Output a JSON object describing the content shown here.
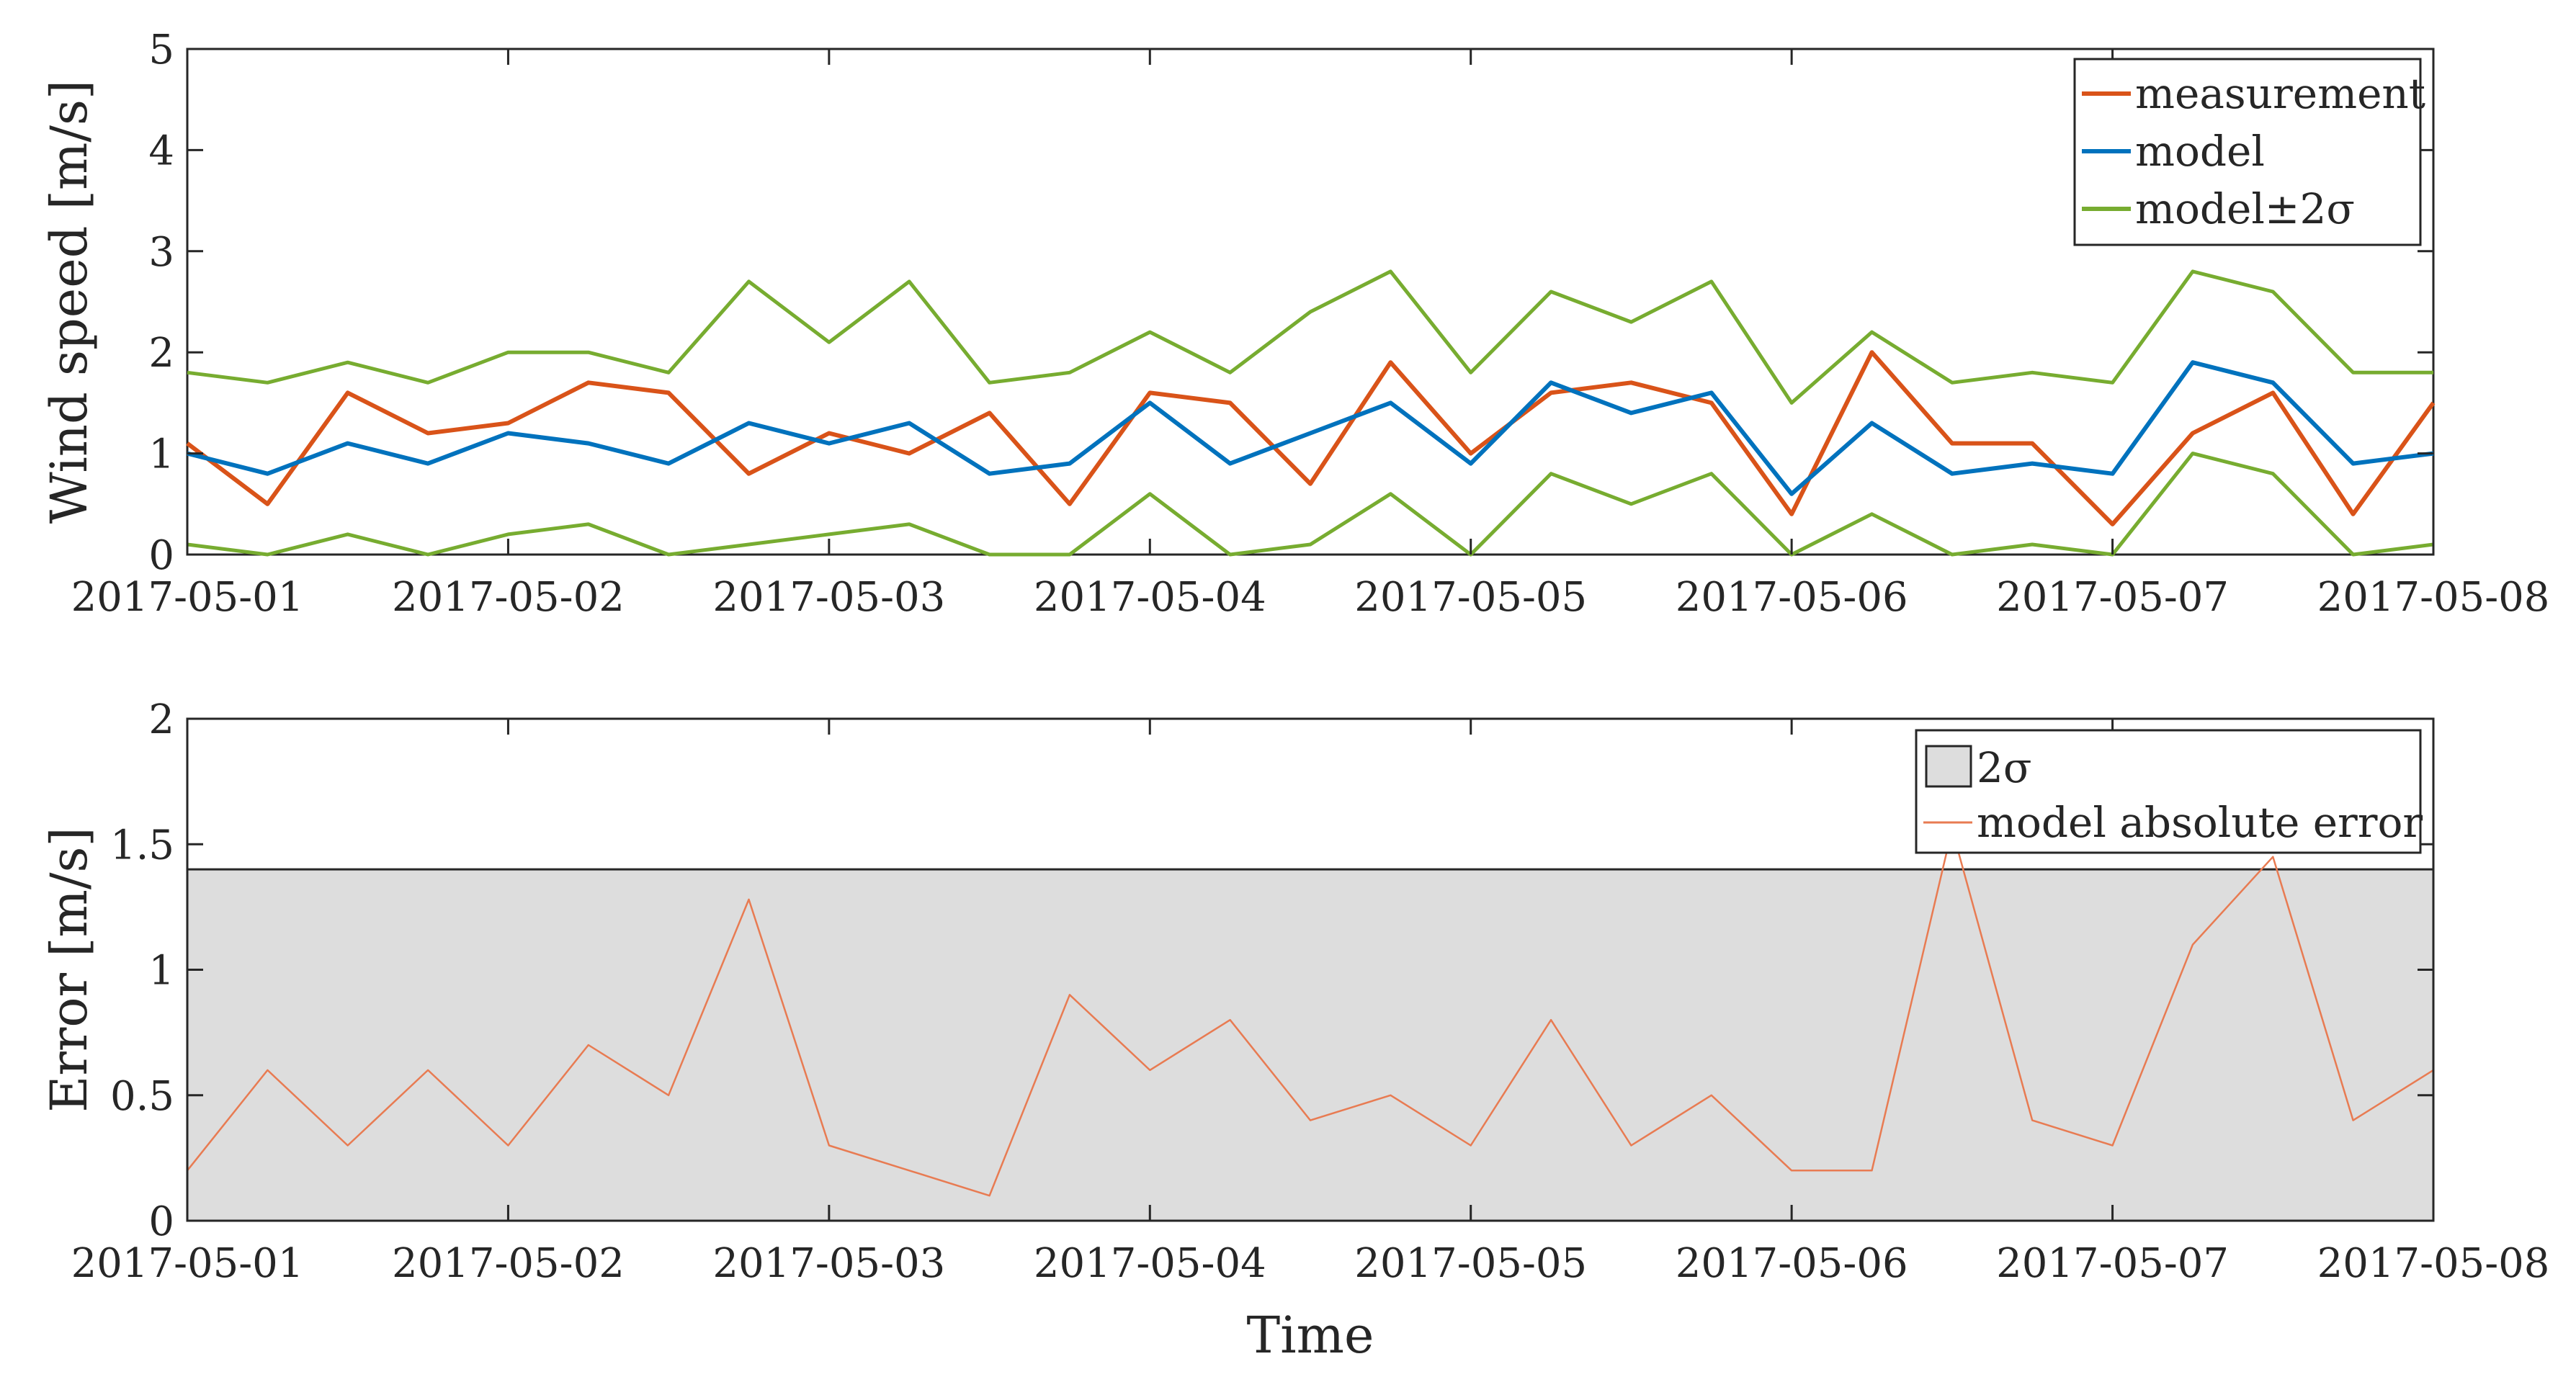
{
  "chart_data": [
    {
      "type": "line",
      "title": "",
      "xlabel": "",
      "ylabel": "Wind speed [m/s]",
      "ylim": [
        0,
        5
      ],
      "yticks": [
        "0",
        "1",
        "2",
        "3",
        "4",
        "5"
      ],
      "xlim": [
        "2017-05-01",
        "2017-05-08"
      ],
      "xticks": [
        "2017-05-01",
        "2017-05-02",
        "2017-05-03",
        "2017-05-04",
        "2017-05-05",
        "2017-05-06",
        "2017-05-07",
        "2017-05-08"
      ],
      "grid": false,
      "legend_position": "top-right",
      "series": [
        {
          "name": "measurement",
          "color": "#D95319",
          "x": [
            "2017-05-01 00:00",
            "2017-05-01 06:00",
            "2017-05-01 12:00",
            "2017-05-01 18:00",
            "2017-05-02 00:00",
            "2017-05-02 06:00",
            "2017-05-02 12:00",
            "2017-05-02 18:00",
            "2017-05-03 00:00",
            "2017-05-03 06:00",
            "2017-05-03 12:00",
            "2017-05-03 18:00",
            "2017-05-04 00:00",
            "2017-05-04 06:00",
            "2017-05-04 12:00",
            "2017-05-04 18:00",
            "2017-05-05 00:00",
            "2017-05-05 06:00",
            "2017-05-05 12:00",
            "2017-05-05 18:00",
            "2017-05-06 00:00",
            "2017-05-06 06:00",
            "2017-05-06 12:00",
            "2017-05-06 18:00",
            "2017-05-07 00:00",
            "2017-05-07 06:00",
            "2017-05-07 12:00",
            "2017-05-07 18:00",
            "2017-05-08 00:00"
          ],
          "values": [
            1.1,
            0.5,
            1.6,
            1.2,
            1.3,
            1.7,
            1.6,
            0.8,
            1.2,
            1.0,
            1.4,
            0.5,
            1.6,
            1.5,
            0.7,
            1.9,
            1.0,
            1.6,
            1.7,
            1.5,
            0.4,
            2.0,
            1.1,
            1.1,
            0.3,
            1.2,
            1.6,
            0.4,
            1.5
          ]
        },
        {
          "name": "model",
          "color": "#0072BD",
          "x": [
            "2017-05-01 00:00",
            "2017-05-01 06:00",
            "2017-05-01 12:00",
            "2017-05-01 18:00",
            "2017-05-02 00:00",
            "2017-05-02 06:00",
            "2017-05-02 12:00",
            "2017-05-02 18:00",
            "2017-05-03 00:00",
            "2017-05-03 06:00",
            "2017-05-03 12:00",
            "2017-05-03 18:00",
            "2017-05-04 00:00",
            "2017-05-04 06:00",
            "2017-05-04 12:00",
            "2017-05-04 18:00",
            "2017-05-05 00:00",
            "2017-05-05 06:00",
            "2017-05-05 12:00",
            "2017-05-05 18:00",
            "2017-05-06 00:00",
            "2017-05-06 06:00",
            "2017-05-06 12:00",
            "2017-05-06 18:00",
            "2017-05-07 00:00",
            "2017-05-07 06:00",
            "2017-05-07 12:00",
            "2017-05-07 18:00",
            "2017-05-08 00:00"
          ],
          "values": [
            1.0,
            0.8,
            1.1,
            0.9,
            1.2,
            1.1,
            0.9,
            1.3,
            1.1,
            1.3,
            0.8,
            0.9,
            1.5,
            0.9,
            1.2,
            1.5,
            0.9,
            1.7,
            1.4,
            1.6,
            0.6,
            1.3,
            0.8,
            0.9,
            0.8,
            1.9,
            1.7,
            0.9,
            1.0
          ]
        },
        {
          "name": "model±2σ",
          "color": "#77AC30",
          "x": [
            "2017-05-01 00:00",
            "2017-05-01 06:00",
            "2017-05-01 12:00",
            "2017-05-01 18:00",
            "2017-05-02 00:00",
            "2017-05-02 06:00",
            "2017-05-02 12:00",
            "2017-05-02 18:00",
            "2017-05-03 00:00",
            "2017-05-03 06:00",
            "2017-05-03 12:00",
            "2017-05-03 18:00",
            "2017-05-04 00:00",
            "2017-05-04 06:00",
            "2017-05-04 12:00",
            "2017-05-04 18:00",
            "2017-05-05 00:00",
            "2017-05-05 06:00",
            "2017-05-05 12:00",
            "2017-05-05 18:00",
            "2017-05-06 00:00",
            "2017-05-06 06:00",
            "2017-05-06 12:00",
            "2017-05-06 18:00",
            "2017-05-07 00:00",
            "2017-05-07 06:00",
            "2017-05-07 12:00",
            "2017-05-07 18:00",
            "2017-05-08 00:00"
          ],
          "values_upper": [
            1.8,
            1.7,
            1.9,
            1.7,
            2.0,
            2.0,
            1.8,
            2.7,
            2.1,
            2.7,
            1.7,
            1.8,
            2.2,
            1.8,
            2.4,
            2.8,
            1.8,
            2.6,
            2.3,
            2.7,
            1.5,
            2.2,
            1.7,
            1.8,
            1.7,
            2.8,
            2.6,
            1.8,
            1.8
          ],
          "values_lower": [
            0.1,
            0.0,
            0.2,
            0.0,
            0.2,
            0.3,
            0.0,
            0.1,
            0.2,
            0.3,
            0.0,
            0.0,
            0.6,
            0.0,
            0.1,
            0.6,
            0.0,
            0.8,
            0.5,
            0.8,
            0.0,
            0.4,
            0.0,
            0.1,
            0.0,
            1.0,
            0.8,
            0.0,
            0.1
          ]
        }
      ]
    },
    {
      "type": "area",
      "title": "",
      "xlabel": "Time",
      "ylabel": "Error [m/s]",
      "ylim": [
        0,
        2
      ],
      "yticks": [
        "0",
        "0.5",
        "1",
        "1.5",
        "2"
      ],
      "xlim": [
        "2017-05-01",
        "2017-05-08"
      ],
      "xticks": [
        "2017-05-01",
        "2017-05-02",
        "2017-05-03",
        "2017-05-04",
        "2017-05-05",
        "2017-05-06",
        "2017-05-07",
        "2017-05-08"
      ],
      "grid": false,
      "legend_position": "top-right",
      "series": [
        {
          "name": "2σ",
          "color": "#DDDDDD",
          "edge_color": "#262626",
          "x": [
            "2017-05-01",
            "2017-05-08"
          ],
          "values": [
            1.4,
            1.4
          ]
        },
        {
          "name": "model absolute error",
          "color": "#E87B52",
          "x": [
            "2017-05-01 00:00",
            "2017-05-01 06:00",
            "2017-05-01 12:00",
            "2017-05-01 18:00",
            "2017-05-02 00:00",
            "2017-05-02 06:00",
            "2017-05-02 12:00",
            "2017-05-02 18:00",
            "2017-05-03 00:00",
            "2017-05-03 06:00",
            "2017-05-03 12:00",
            "2017-05-03 18:00",
            "2017-05-04 00:00",
            "2017-05-04 06:00",
            "2017-05-04 12:00",
            "2017-05-04 18:00",
            "2017-05-05 00:00",
            "2017-05-05 06:00",
            "2017-05-05 12:00",
            "2017-05-05 18:00",
            "2017-05-06 00:00",
            "2017-05-06 06:00",
            "2017-05-06 12:00",
            "2017-05-06 18:00",
            "2017-05-07 00:00",
            "2017-05-07 06:00",
            "2017-05-07 12:00",
            "2017-05-07 18:00",
            "2017-05-08 00:00"
          ],
          "values": [
            0.2,
            0.6,
            0.3,
            0.6,
            0.3,
            0.7,
            0.5,
            1.28,
            0.3,
            0.2,
            0.1,
            0.9,
            0.6,
            0.8,
            0.4,
            0.5,
            0.3,
            0.8,
            0.3,
            0.5,
            0.2,
            0.2,
            1.56,
            0.4,
            0.3,
            1.1,
            1.45,
            0.4,
            0.6
          ]
        }
      ]
    }
  ]
}
